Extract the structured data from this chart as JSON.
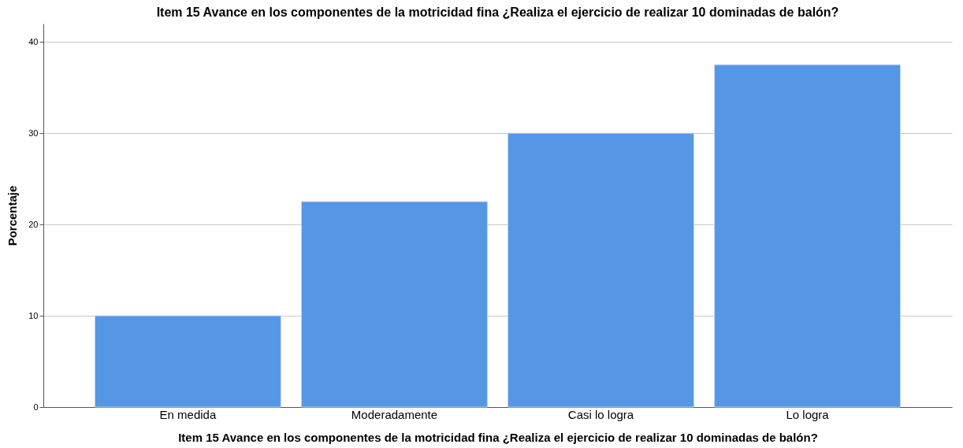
{
  "chart_data": {
    "type": "bar",
    "title": "Item 15 Avance en los componentes de la motricidad fina ¿Realiza el ejercicio de realizar 10 dominadas de balón?",
    "xlabel": "Item 15 Avance en los componentes de la motricidad fina ¿Realiza el ejercicio de realizar 10 dominadas de balón?",
    "ylabel": "Porcentaje",
    "categories": [
      "En medida",
      "Moderadamente",
      "Casi lo logra",
      "Lo logra"
    ],
    "values": [
      10,
      22.5,
      30,
      37.5
    ],
    "color": "#5596e5",
    "ylim": [
      0,
      42
    ],
    "yticks": [
      0,
      10,
      20,
      30,
      40
    ],
    "grid": "y"
  }
}
